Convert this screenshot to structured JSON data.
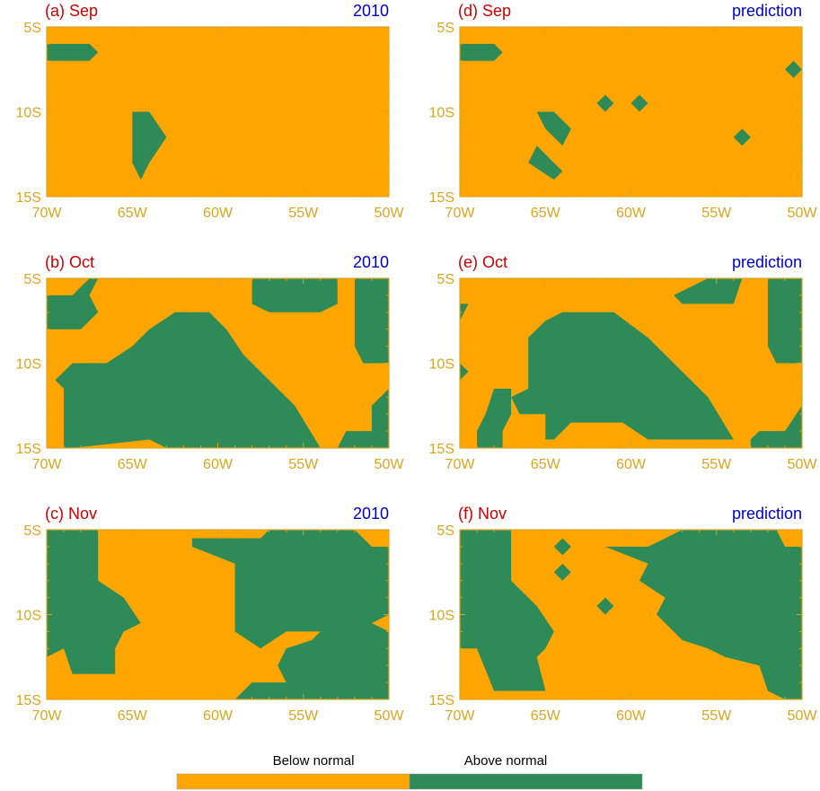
{
  "legend": {
    "below_label": "Below normal",
    "above_label": "Above normal",
    "below_color": "#ffa500",
    "above_color": "#2e8b57"
  },
  "colors": {
    "axis": "#daa520",
    "panel_label": "#cc0000",
    "panel_tag": "#0000cc"
  },
  "chart_data": [
    {
      "type": "heatmap",
      "label": "(a) Sep",
      "tag": "2010",
      "xlim": [
        -70,
        -50
      ],
      "ylim": [
        -15,
        -5
      ],
      "x_ticks": [
        "70W",
        "65W",
        "60W",
        "55W",
        "50W"
      ],
      "y_ticks": [
        "5S",
        "10S",
        "15S"
      ],
      "above_normal_regions": [
        [
          [
            -70,
            -6
          ],
          [
            -67.5,
            -6
          ],
          [
            -67,
            -6.5
          ],
          [
            -67.5,
            -7
          ],
          [
            -70,
            -7
          ]
        ],
        [
          [
            -65,
            -10
          ],
          [
            -64,
            -10
          ],
          [
            -63,
            -11.5
          ],
          [
            -64,
            -13
          ],
          [
            -64.5,
            -14
          ],
          [
            -65,
            -13
          ]
        ]
      ]
    },
    {
      "type": "heatmap",
      "label": "(b) Oct",
      "tag": "2010",
      "xlim": [
        -70,
        -50
      ],
      "ylim": [
        -15,
        -5
      ],
      "x_ticks": [
        "70W",
        "65W",
        "60W",
        "55W",
        "50W"
      ],
      "y_ticks": [
        "5S",
        "10S",
        "15S"
      ],
      "above_normal_regions": [
        [
          [
            -70,
            -6
          ],
          [
            -68.5,
            -6
          ],
          [
            -67.5,
            -5
          ],
          [
            -67,
            -5
          ],
          [
            -67.5,
            -6
          ],
          [
            -67,
            -7
          ],
          [
            -68,
            -8
          ],
          [
            -70,
            -8
          ]
        ],
        [
          [
            -58,
            -5
          ],
          [
            -53,
            -5
          ],
          [
            -53,
            -6.5
          ],
          [
            -54,
            -7
          ],
          [
            -57,
            -7
          ],
          [
            -58,
            -6.5
          ]
        ],
        [
          [
            -52,
            -5
          ],
          [
            -50,
            -5
          ],
          [
            -50,
            -10
          ],
          [
            -51.5,
            -10
          ],
          [
            -52,
            -9
          ]
        ],
        [
          [
            -62.5,
            -7
          ],
          [
            -60.5,
            -7
          ],
          [
            -59.5,
            -8
          ],
          [
            -58.5,
            -9.5
          ],
          [
            -57,
            -11
          ],
          [
            -55.5,
            -12.5
          ],
          [
            -54,
            -15
          ],
          [
            -63,
            -15
          ],
          [
            -64,
            -14.5
          ],
          [
            -68.5,
            -15
          ],
          [
            -69,
            -15
          ],
          [
            -69,
            -11.5
          ],
          [
            -69.5,
            -11
          ],
          [
            -68.5,
            -10
          ],
          [
            -66.5,
            -10
          ],
          [
            -65,
            -9
          ],
          [
            -64,
            -8
          ]
        ],
        [
          [
            -50,
            -11.5
          ],
          [
            -51,
            -12.5
          ],
          [
            -51,
            -14
          ],
          [
            -52.5,
            -14
          ],
          [
            -53,
            -15
          ],
          [
            -50,
            -15
          ]
        ]
      ]
    },
    {
      "type": "heatmap",
      "label": "(c) Nov",
      "tag": "2010",
      "xlim": [
        -70,
        -50
      ],
      "ylim": [
        -15,
        -5
      ],
      "x_ticks": [
        "70W",
        "65W",
        "60W",
        "55W",
        "50W"
      ],
      "y_ticks": [
        "5S",
        "10S",
        "15S"
      ],
      "above_normal_regions": [
        [
          [
            -70,
            -5
          ],
          [
            -67,
            -5
          ],
          [
            -67,
            -8
          ],
          [
            -65.5,
            -9
          ],
          [
            -64.5,
            -10.5
          ],
          [
            -65.5,
            -11
          ],
          [
            -66,
            -12
          ],
          [
            -66,
            -13.5
          ],
          [
            -68.5,
            -13.5
          ],
          [
            -69,
            -12
          ],
          [
            -70,
            -12.5
          ]
        ],
        [
          [
            -61.5,
            -5.5
          ],
          [
            -57.5,
            -5.5
          ],
          [
            -57,
            -5
          ],
          [
            -52,
            -5
          ],
          [
            -51,
            -6
          ],
          [
            -50,
            -6
          ],
          [
            -50,
            -10
          ],
          [
            -51,
            -10.5
          ],
          [
            -50,
            -11
          ],
          [
            -50,
            -15
          ],
          [
            -59,
            -15
          ],
          [
            -58,
            -14
          ],
          [
            -56,
            -14
          ],
          [
            -56.5,
            -13
          ],
          [
            -56,
            -12
          ],
          [
            -54.5,
            -11.5
          ],
          [
            -54,
            -11
          ],
          [
            -56,
            -11
          ],
          [
            -57.5,
            -12
          ],
          [
            -59,
            -11
          ],
          [
            -59,
            -7
          ],
          [
            -61.5,
            -6
          ]
        ]
      ]
    },
    {
      "type": "heatmap",
      "label": "(d) Sep",
      "tag": "prediction",
      "xlim": [
        -70,
        -50
      ],
      "ylim": [
        -15,
        -5
      ],
      "x_ticks": [
        "70W",
        "65W",
        "60W",
        "55W",
        "50W"
      ],
      "y_ticks": [
        "5S",
        "10S",
        "15S"
      ],
      "above_normal_regions": [
        [
          [
            -70,
            -6
          ],
          [
            -68,
            -6
          ],
          [
            -67.5,
            -6.5
          ],
          [
            -68,
            -7
          ],
          [
            -70,
            -7
          ]
        ],
        [
          [
            -50.5,
            -7
          ],
          [
            -50,
            -7.5
          ],
          [
            -50.5,
            -8
          ],
          [
            -51,
            -7.5
          ]
        ],
        [
          [
            -61.5,
            -9
          ],
          [
            -61,
            -9.5
          ],
          [
            -61.5,
            -10
          ],
          [
            -62,
            -9.5
          ]
        ],
        [
          [
            -59.5,
            -9
          ],
          [
            -59,
            -9.5
          ],
          [
            -59.5,
            -10
          ],
          [
            -60,
            -9.5
          ]
        ],
        [
          [
            -53.5,
            -11
          ],
          [
            -53,
            -11.5
          ],
          [
            -53.5,
            -12
          ],
          [
            -54,
            -11.5
          ]
        ],
        [
          [
            -65.5,
            -10
          ],
          [
            -64.5,
            -10
          ],
          [
            -63.5,
            -11
          ],
          [
            -64,
            -12
          ],
          [
            -65,
            -11
          ]
        ],
        [
          [
            -65.5,
            -12
          ],
          [
            -64,
            -13.5
          ],
          [
            -64.5,
            -14
          ],
          [
            -66,
            -13
          ]
        ]
      ]
    },
    {
      "type": "heatmap",
      "label": "(e) Oct",
      "tag": "prediction",
      "xlim": [
        -70,
        -50
      ],
      "ylim": [
        -15,
        -5
      ],
      "x_ticks": [
        "70W",
        "65W",
        "60W",
        "55W",
        "50W"
      ],
      "y_ticks": [
        "5S",
        "10S",
        "15S"
      ],
      "above_normal_regions": [
        [
          [
            -70,
            -6.5
          ],
          [
            -69.5,
            -6.5
          ],
          [
            -70,
            -7.5
          ]
        ],
        [
          [
            -70,
            -10
          ],
          [
            -69.5,
            -10.5
          ],
          [
            -70,
            -11
          ]
        ],
        [
          [
            -55.5,
            -5
          ],
          [
            -53.5,
            -5
          ],
          [
            -54,
            -6.5
          ],
          [
            -57,
            -6.5
          ],
          [
            -57.5,
            -6
          ]
        ],
        [
          [
            -52,
            -5
          ],
          [
            -50,
            -5
          ],
          [
            -50,
            -10
          ],
          [
            -51.5,
            -10
          ],
          [
            -52,
            -9
          ]
        ],
        [
          [
            -62.5,
            -7
          ],
          [
            -61,
            -7
          ],
          [
            -59,
            -8.5
          ],
          [
            -57,
            -10.5
          ],
          [
            -55.5,
            -12
          ],
          [
            -54,
            -14.5
          ],
          [
            -59,
            -14.5
          ],
          [
            -60.5,
            -13.5
          ],
          [
            -63.5,
            -13.5
          ],
          [
            -64.5,
            -14.5
          ],
          [
            -65,
            -14.5
          ],
          [
            -65,
            -13
          ],
          [
            -66.5,
            -13
          ],
          [
            -67,
            -12
          ],
          [
            -66,
            -11.5
          ],
          [
            -66,
            -8.5
          ],
          [
            -65,
            -7.5
          ],
          [
            -64,
            -7
          ]
        ],
        [
          [
            -68,
            -11.5
          ],
          [
            -67,
            -11.5
          ],
          [
            -67,
            -13
          ],
          [
            -67.5,
            -14
          ],
          [
            -67.5,
            -15
          ],
          [
            -69,
            -15
          ],
          [
            -69,
            -14
          ],
          [
            -68.5,
            -13
          ]
        ],
        [
          [
            -50,
            -12.5
          ],
          [
            -51,
            -14
          ],
          [
            -52.5,
            -14
          ],
          [
            -53,
            -14.5
          ],
          [
            -53,
            -15
          ],
          [
            -50,
            -15
          ]
        ]
      ]
    },
    {
      "type": "heatmap",
      "label": "(f) Nov",
      "tag": "prediction",
      "xlim": [
        -70,
        -50
      ],
      "ylim": [
        -15,
        -5
      ],
      "x_ticks": [
        "70W",
        "65W",
        "60W",
        "55W",
        "50W"
      ],
      "y_ticks": [
        "5S",
        "10S",
        "15S"
      ],
      "above_normal_regions": [
        [
          [
            -70,
            -5
          ],
          [
            -67,
            -5
          ],
          [
            -67,
            -8
          ],
          [
            -65.5,
            -9.5
          ],
          [
            -64.5,
            -11
          ],
          [
            -65,
            -12
          ],
          [
            -65.5,
            -12.5
          ],
          [
            -65,
            -14.5
          ],
          [
            -68,
            -14.5
          ],
          [
            -69,
            -12
          ],
          [
            -70,
            -12
          ]
        ],
        [
          [
            -64,
            -5.5
          ],
          [
            -63.5,
            -6
          ],
          [
            -64,
            -6.5
          ],
          [
            -64.5,
            -6
          ]
        ],
        [
          [
            -64,
            -7
          ],
          [
            -63.5,
            -7.5
          ],
          [
            -64,
            -8
          ],
          [
            -64.5,
            -7.5
          ]
        ],
        [
          [
            -61.5,
            -9
          ],
          [
            -61,
            -9.5
          ],
          [
            -61.5,
            -10
          ],
          [
            -62,
            -9.5
          ]
        ],
        [
          [
            -57,
            -5
          ],
          [
            -51.5,
            -5
          ],
          [
            -51,
            -6
          ],
          [
            -50,
            -6
          ],
          [
            -50,
            -15
          ],
          [
            -51,
            -15
          ],
          [
            -52,
            -14.5
          ],
          [
            -52.5,
            -13
          ],
          [
            -54.5,
            -12.5
          ],
          [
            -55.5,
            -12
          ],
          [
            -57,
            -11.5
          ],
          [
            -58.5,
            -10
          ],
          [
            -58,
            -9
          ],
          [
            -59.5,
            -8
          ],
          [
            -59,
            -7
          ],
          [
            -61.5,
            -6
          ],
          [
            -59,
            -6
          ],
          [
            -58,
            -5.5
          ]
        ]
      ]
    }
  ]
}
